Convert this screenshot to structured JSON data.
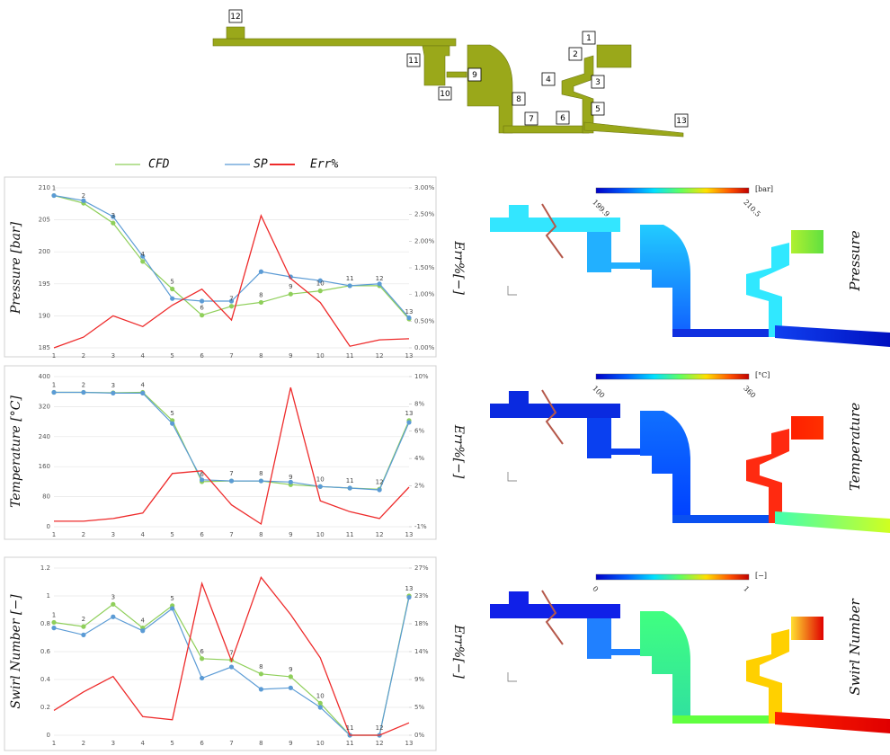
{
  "geometry": {
    "labels": [
      "1",
      "2",
      "3",
      "4",
      "5",
      "6",
      "7",
      "8",
      "9",
      "10",
      "11",
      "12",
      "13"
    ]
  },
  "chart_data": [
    {
      "type": "line",
      "categories": [
        "1",
        "2",
        "3",
        "4",
        "5",
        "6",
        "7",
        "8",
        "9",
        "10",
        "11",
        "12",
        "13"
      ],
      "ylabel": "Pressure [bar]",
      "y2label": "Err%[−]",
      "ylim": [
        185,
        210
      ],
      "yticks": [
        185,
        190,
        195,
        200,
        205,
        210
      ],
      "y2lim": [
        0,
        3
      ],
      "y2ticks": [
        {
          "value": 0,
          "label": "0.00%"
        },
        {
          "value": 0.5,
          "label": "0.50%"
        },
        {
          "value": 1,
          "label": "1.00%"
        },
        {
          "value": 1.5,
          "label": "1.50%"
        },
        {
          "value": 2,
          "label": "2.00%"
        },
        {
          "value": 2.5,
          "label": "2.50%"
        },
        {
          "value": 3,
          "label": "3.00%"
        }
      ],
      "grid": true,
      "series": [
        {
          "name": "CFD",
          "color": "#8fcf5a",
          "values": [
            208.8,
            207.6,
            204.5,
            198.5,
            194.2,
            190.1,
            191.5,
            192.1,
            193.4,
            193.9,
            194.7,
            194.7,
            189.5
          ]
        },
        {
          "name": "SP",
          "color": "#5b9bd5",
          "values": [
            208.8,
            208.0,
            205.5,
            199.3,
            192.7,
            192.3,
            192.3,
            196.9,
            196.1,
            195.5,
            194.7,
            195.0,
            189.7
          ]
        },
        {
          "name": "Err%",
          "color": "#ee2b2b",
          "axis": "y2",
          "values": [
            0.0,
            0.2,
            0.6,
            0.4,
            0.8,
            1.1,
            0.52,
            2.48,
            1.3,
            0.85,
            0.03,
            0.15,
            0.17
          ]
        }
      ]
    },
    {
      "type": "line",
      "categories": [
        "1",
        "2",
        "3",
        "4",
        "5",
        "6",
        "7",
        "8",
        "9",
        "10",
        "11",
        "12",
        "13"
      ],
      "ylabel": "Temperature [°C]",
      "y2label": "Err%[−]",
      "ylim": [
        0,
        400
      ],
      "yticks": [
        0,
        80,
        160,
        240,
        320,
        400
      ],
      "y2lim": [
        -1,
        10
      ],
      "y2ticks": [
        {
          "value": -1,
          "label": "-1%"
        },
        {
          "value": 2,
          "label": "2%"
        },
        {
          "value": 4,
          "label": "4%"
        },
        {
          "value": 6,
          "label": "6%"
        },
        {
          "value": 8,
          "label": "8%"
        },
        {
          "value": 10,
          "label": "10%"
        }
      ],
      "grid": true,
      "series": [
        {
          "color": "#8fcf5a",
          "values": [
            358,
            358,
            357,
            358,
            283,
            120,
            122,
            122,
            112,
            107,
            103,
            100,
            283
          ]
        },
        {
          "color": "#5b9bd5",
          "values": [
            358,
            358,
            356,
            356,
            275,
            125,
            122,
            122,
            119,
            107,
            103,
            98,
            278
          ]
        },
        {
          "color": "#ee2b2b",
          "axis": "y2",
          "values": [
            -0.6,
            -0.6,
            -0.4,
            0.0,
            2.9,
            3.1,
            0.6,
            -0.8,
            9.2,
            0.9,
            0.1,
            -0.4,
            1.9
          ]
        }
      ]
    },
    {
      "type": "line",
      "categories": [
        "1",
        "2",
        "3",
        "4",
        "5",
        "6",
        "7",
        "8",
        "9",
        "10",
        "11",
        "12",
        "13"
      ],
      "ylabel": "Swirl Number [−]",
      "y2label": "Err%[−]",
      "ylim": [
        0,
        1.2
      ],
      "yticks": [
        0,
        0.2,
        0.4,
        0.6,
        0.8,
        1,
        1.2
      ],
      "y2lim": [
        0,
        27
      ],
      "y2ticks": [
        {
          "value": 0,
          "label": "0%"
        },
        {
          "value": 4.5,
          "label": "5%"
        },
        {
          "value": 9,
          "label": "9%"
        },
        {
          "value": 13.5,
          "label": "14%"
        },
        {
          "value": 18,
          "label": "18%"
        },
        {
          "value": 22.5,
          "label": "23%"
        },
        {
          "value": 27,
          "label": "27%"
        }
      ],
      "grid": true,
      "series": [
        {
          "color": "#8fcf5a",
          "values": [
            0.81,
            0.78,
            0.94,
            0.77,
            0.93,
            0.55,
            0.54,
            0.44,
            0.42,
            0.23,
            0.0,
            0.0,
            1.0
          ]
        },
        {
          "color": "#5b9bd5",
          "values": [
            0.77,
            0.72,
            0.85,
            0.75,
            0.91,
            0.41,
            0.49,
            0.33,
            0.34,
            0.2,
            0.0,
            0.0,
            0.99
          ]
        },
        {
          "color": "#ee2b2b",
          "axis": "y2",
          "values": [
            4,
            7,
            9.5,
            3,
            2.5,
            24.5,
            12,
            25.5,
            19.5,
            12.5,
            0,
            0,
            2
          ]
        }
      ]
    }
  ],
  "contours": [
    {
      "title": "Pressure",
      "min": "199.9",
      "max": "210.5",
      "unit": "[bar]"
    },
    {
      "title": "Temperature",
      "min": "100",
      "max": "360",
      "unit": "[°C]"
    },
    {
      "title": "Swirl Number",
      "min": "0",
      "max": "1",
      "unit": "[−]"
    }
  ]
}
